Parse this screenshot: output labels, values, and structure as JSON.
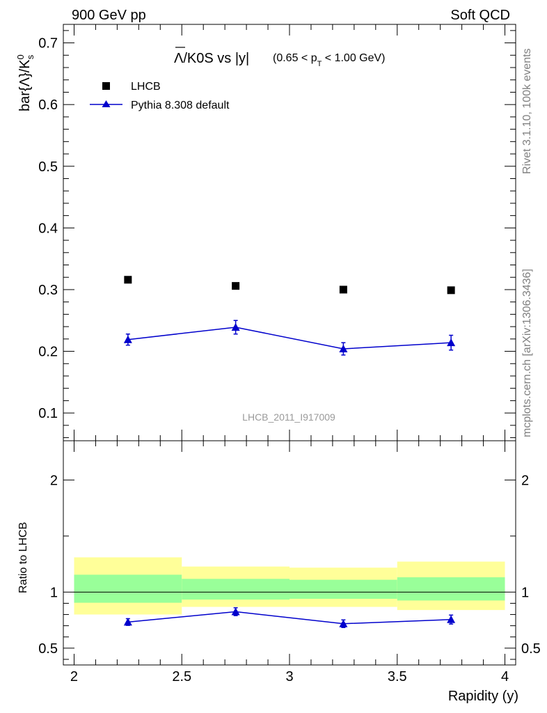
{
  "header": {
    "left": "900 GeV pp",
    "right": "Soft QCD"
  },
  "side_labels": {
    "rivet": "Rivet 3.1.10,  100k events",
    "mcplots": "mcplots.cern.ch [arXiv:1306.3436]"
  },
  "colors": {
    "data": "#000000",
    "mc": "#0000cc",
    "band_inner": "#99ff99",
    "band_outer": "#ffff99",
    "watermark": "#999999",
    "side_text": "#808080"
  },
  "chart_data": [
    {
      "type": "scatter",
      "panel": "main",
      "title": {
        "main": "Λ/K0S vs |y|",
        "cut_open": "(0.65 < p",
        "cut_sub": "T",
        "cut_close": " < 1.00 GeV)"
      },
      "ylabel": {
        "main": "bar{Λ}/K",
        "sup": "0",
        "sub": "s"
      },
      "xlim": [
        1.95,
        4.05
      ],
      "ylim": [
        0.055,
        0.73
      ],
      "y_ticks": [
        0.1,
        0.2,
        0.3,
        0.4,
        0.5,
        0.6,
        0.7
      ],
      "y_tick_labels": [
        "0.1",
        "0.2",
        "0.3",
        "0.4",
        "0.5",
        "0.6",
        "0.7"
      ],
      "watermark": "LHCB_2011_I917009",
      "legend_position": "top-left",
      "series": [
        {
          "name": "LHCB",
          "marker": "square",
          "x": [
            2.25,
            2.75,
            3.25,
            3.75
          ],
          "y": [
            0.316,
            0.306,
            0.3,
            0.299
          ]
        },
        {
          "name": "Pythia 8.308 default",
          "marker": "triangle",
          "x": [
            2.25,
            2.75,
            3.25,
            3.75
          ],
          "y": [
            0.219,
            0.239,
            0.204,
            0.214
          ],
          "yerr": [
            0.009,
            0.011,
            0.01,
            0.012
          ]
        }
      ]
    },
    {
      "type": "line",
      "panel": "ratio",
      "ylabel": "Ratio to LHCB",
      "xlabel": "Rapidity (y)",
      "xlim": [
        1.95,
        4.05
      ],
      "ylim": [
        0.35,
        2.35
      ],
      "y_ticks": [
        0.5,
        1,
        2
      ],
      "y_tick_labels": [
        "0.5",
        "1",
        "2"
      ],
      "x_ticks": [
        2,
        2.5,
        3,
        3.5,
        4
      ],
      "x_tick_labels": [
        "2",
        "2.5",
        "3",
        "3.5",
        "4"
      ],
      "reference_line": 1,
      "bands": [
        {
          "x_lo": 2.0,
          "x_hi": 2.5,
          "inner": [
            0.905,
            1.155
          ],
          "outer": [
            0.8,
            1.31
          ]
        },
        {
          "x_lo": 2.5,
          "x_hi": 3.0,
          "inner": [
            0.933,
            1.118
          ],
          "outer": [
            0.868,
            1.228
          ]
        },
        {
          "x_lo": 3.0,
          "x_hi": 3.5,
          "inner": [
            0.94,
            1.11
          ],
          "outer": [
            0.868,
            1.218
          ]
        },
        {
          "x_lo": 3.5,
          "x_hi": 4.0,
          "inner": [
            0.925,
            1.132
          ],
          "outer": [
            0.84,
            1.272
          ]
        }
      ],
      "series": [
        {
          "name": "Pythia 8.308 default",
          "marker": "triangle",
          "x": [
            2.25,
            2.75,
            3.25,
            3.75
          ],
          "y": [
            0.733,
            0.825,
            0.718,
            0.755
          ],
          "yerr": [
            0.03,
            0.035,
            0.034,
            0.04
          ]
        }
      ]
    }
  ]
}
